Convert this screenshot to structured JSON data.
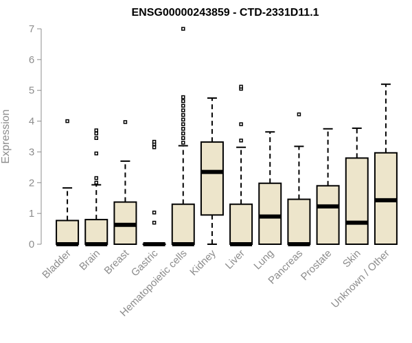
{
  "chart_data": {
    "type": "boxplot",
    "title": "ENSG00000243859 - CTD-2331D11.1",
    "xlabel": "",
    "ylabel": "Expression",
    "ylim": [
      0,
      7
    ],
    "yticks": [
      "0",
      "1",
      "2",
      "3",
      "4",
      "5",
      "6",
      "7"
    ],
    "grid": false,
    "colors": {
      "box_fill": "#ede5cb",
      "box_stroke": "#000000",
      "axis": "#8c8c8c"
    },
    "categories": [
      "Bladder",
      "Brain",
      "Breast",
      "Gastric",
      "Hematopoietic cells",
      "Kidney",
      "Liver",
      "Lung",
      "Pancreas",
      "Prostate",
      "Skin",
      "Unknown / Other"
    ],
    "boxes": [
      {
        "category": "Bladder",
        "whisker_low": 0,
        "q1": 0,
        "median": 0,
        "q3": 0.77,
        "whisker_high": 1.83,
        "outliers": [
          4.0
        ]
      },
      {
        "category": "Brain",
        "whisker_low": 0,
        "q1": 0,
        "median": 0,
        "q3": 0.8,
        "whisker_high": 1.93,
        "outliers": [
          2.0,
          2.15,
          2.95,
          3.45,
          3.6,
          3.7
        ]
      },
      {
        "category": "Breast",
        "whisker_low": 0,
        "q1": 0,
        "median": 0.63,
        "q3": 1.37,
        "whisker_high": 2.7,
        "outliers": [
          3.97
        ]
      },
      {
        "category": "Gastric",
        "whisker_low": 0,
        "q1": 0,
        "median": 0,
        "q3": 0,
        "whisker_high": 0,
        "outliers": [
          0.7,
          1.03,
          3.15,
          3.25,
          3.33
        ]
      },
      {
        "category": "Hematopoietic cells",
        "whisker_low": 0,
        "q1": 0,
        "median": 0,
        "q3": 1.3,
        "whisker_high": 3.2,
        "outliers": [
          3.3,
          3.45,
          3.6,
          3.75,
          3.9,
          4.05,
          4.2,
          4.35,
          4.5,
          4.65,
          4.78,
          7.0
        ]
      },
      {
        "category": "Kidney",
        "whisker_low": 0,
        "q1": 0.95,
        "median": 2.35,
        "q3": 3.32,
        "whisker_high": 4.75,
        "outliers": []
      },
      {
        "category": "Liver",
        "whisker_low": 0,
        "q1": 0,
        "median": 0,
        "q3": 1.3,
        "whisker_high": 3.15,
        "outliers": [
          3.37,
          3.9,
          5.05,
          5.12
        ]
      },
      {
        "category": "Lung",
        "whisker_low": 0,
        "q1": 0,
        "median": 0.9,
        "q3": 1.98,
        "whisker_high": 3.65,
        "outliers": []
      },
      {
        "category": "Pancreas",
        "whisker_low": 0,
        "q1": 0,
        "median": 0,
        "q3": 1.46,
        "whisker_high": 3.18,
        "outliers": [
          4.22
        ]
      },
      {
        "category": "Prostate",
        "whisker_low": 0,
        "q1": 0,
        "median": 1.23,
        "q3": 1.9,
        "whisker_high": 3.75,
        "outliers": []
      },
      {
        "category": "Skin",
        "whisker_low": 0,
        "q1": 0,
        "median": 0.7,
        "q3": 2.8,
        "whisker_high": 3.77,
        "outliers": []
      },
      {
        "category": "Unknown / Other",
        "whisker_low": 0,
        "q1": 0,
        "median": 1.43,
        "q3": 2.97,
        "whisker_high": 5.2,
        "outliers": []
      }
    ]
  }
}
